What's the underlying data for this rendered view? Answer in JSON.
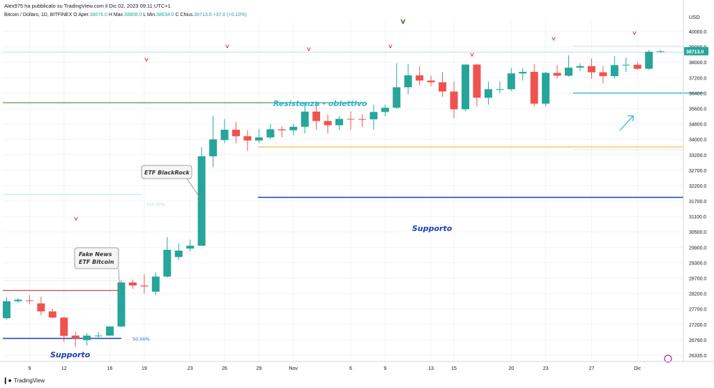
{
  "header": {
    "publisher": "Alex975 ha pubblicato su TradingView.com il Dic 02, 2023 09:11 UTC+1"
  },
  "symbol_bar": {
    "name": "Bitcoin / Dollaro, 1D, BITFINEX",
    "open_label": "O",
    "open_prefix": "Aper.",
    "open": "38676.0",
    "high_label": "H",
    "high_prefix": "Max.",
    "high": "38808.0",
    "low_label": "L",
    "low_prefix": "Min.",
    "low": "38634.0",
    "close_label": "C",
    "close_prefix": "Chius.",
    "close": "38713.0",
    "change": "+37.0 (+0.10%)"
  },
  "currency": "USD",
  "footer": {
    "brand": "TradingView",
    "logo": "tradingview-logo-icon"
  },
  "colors": {
    "up": "#26a69a",
    "down": "#ef5350",
    "grid": "#f0f3fa",
    "accent": "#2962ff"
  },
  "chart_data": {
    "type": "candlestick",
    "ylim": [
      26100,
      40500
    ],
    "y_ticks": [
      "26335.0",
      "26760.0",
      "27200.0",
      "27700.0",
      "28200.0",
      "28700.0",
      "29300.0",
      "29900.0",
      "30500.0",
      "31100.0",
      "31700.0",
      "32200.0",
      "32700.0",
      "33200.0",
      "34000.0",
      "34800.0",
      "35600.0",
      "36400.0",
      "37200.0",
      "38000.0",
      "39000.0",
      "40000.0"
    ],
    "last_price": "38713.0",
    "x_ticks": [
      {
        "i": 2,
        "label": "9"
      },
      {
        "i": 5,
        "label": "12"
      },
      {
        "i": 9,
        "label": "16"
      },
      {
        "i": 12,
        "label": "19"
      },
      {
        "i": 16,
        "label": "23"
      },
      {
        "i": 19,
        "label": "26"
      },
      {
        "i": 22,
        "label": "29"
      },
      {
        "i": 25,
        "label": "Nov"
      },
      {
        "i": 30,
        "label": "6"
      },
      {
        "i": 33,
        "label": "9"
      },
      {
        "i": 37,
        "label": "13"
      },
      {
        "i": 39,
        "label": "15"
      },
      {
        "i": 44,
        "label": "20"
      },
      {
        "i": 47,
        "label": "23"
      },
      {
        "i": 51,
        "label": "27"
      },
      {
        "i": 55,
        "label": "Dic"
      }
    ],
    "candles": [
      {
        "o": 27400,
        "h": 28080,
        "l": 27350,
        "c": 27950
      },
      {
        "o": 27950,
        "h": 28050,
        "l": 27900,
        "c": 28000
      },
      {
        "o": 27980,
        "h": 28150,
        "l": 27850,
        "c": 27960
      },
      {
        "o": 27880,
        "h": 28100,
        "l": 27500,
        "c": 27620
      },
      {
        "o": 27620,
        "h": 27700,
        "l": 27400,
        "c": 27420
      },
      {
        "o": 27420,
        "h": 27450,
        "l": 26700,
        "c": 26870
      },
      {
        "o": 26880,
        "h": 27000,
        "l": 26560,
        "c": 26800
      },
      {
        "o": 26750,
        "h": 26950,
        "l": 26600,
        "c": 26880
      },
      {
        "o": 26870,
        "h": 26980,
        "l": 26800,
        "c": 26880
      },
      {
        "o": 26880,
        "h": 27140,
        "l": 26880,
        "c": 27140
      },
      {
        "o": 27140,
        "h": 28640,
        "l": 27120,
        "c": 28560
      },
      {
        "o": 28560,
        "h": 28650,
        "l": 28350,
        "c": 28460
      },
      {
        "o": 28460,
        "h": 28850,
        "l": 28200,
        "c": 28430
      },
      {
        "o": 28260,
        "h": 28930,
        "l": 28150,
        "c": 28760
      },
      {
        "o": 28760,
        "h": 30300,
        "l": 28720,
        "c": 29800
      },
      {
        "o": 29520,
        "h": 30050,
        "l": 29400,
        "c": 29770
      },
      {
        "o": 29850,
        "h": 30200,
        "l": 29750,
        "c": 29960
      },
      {
        "o": 29960,
        "h": 33600,
        "l": 29950,
        "c": 33150
      },
      {
        "o": 33150,
        "h": 35200,
        "l": 32800,
        "c": 34000
      },
      {
        "o": 33960,
        "h": 35050,
        "l": 33800,
        "c": 34500
      },
      {
        "o": 34500,
        "h": 34900,
        "l": 33800,
        "c": 34160
      },
      {
        "o": 34160,
        "h": 34470,
        "l": 33400,
        "c": 33940
      },
      {
        "o": 33940,
        "h": 34530,
        "l": 33800,
        "c": 34100
      },
      {
        "o": 34100,
        "h": 34800,
        "l": 34000,
        "c": 34520
      },
      {
        "o": 34520,
        "h": 34700,
        "l": 34100,
        "c": 34470
      },
      {
        "o": 34470,
        "h": 34800,
        "l": 34200,
        "c": 34650
      },
      {
        "o": 34650,
        "h": 35900,
        "l": 34300,
        "c": 35440
      },
      {
        "o": 35440,
        "h": 35980,
        "l": 34500,
        "c": 34950
      },
      {
        "o": 34950,
        "h": 35300,
        "l": 34300,
        "c": 34730
      },
      {
        "o": 34730,
        "h": 35200,
        "l": 34500,
        "c": 35060
      },
      {
        "o": 35060,
        "h": 35450,
        "l": 34500,
        "c": 35050
      },
      {
        "o": 35050,
        "h": 35300,
        "l": 34650,
        "c": 35040
      },
      {
        "o": 35040,
        "h": 35800,
        "l": 34500,
        "c": 35420
      },
      {
        "o": 35420,
        "h": 35800,
        "l": 35200,
        "c": 35640
      },
      {
        "o": 35640,
        "h": 37950,
        "l": 35580,
        "c": 36700
      },
      {
        "o": 36700,
        "h": 37900,
        "l": 36350,
        "c": 37320
      },
      {
        "o": 37320,
        "h": 37800,
        "l": 36800,
        "c": 37050
      },
      {
        "o": 37050,
        "h": 37300,
        "l": 36750,
        "c": 36960
      },
      {
        "o": 36960,
        "h": 37500,
        "l": 36200,
        "c": 36480
      },
      {
        "o": 36480,
        "h": 37000,
        "l": 35100,
        "c": 35560
      },
      {
        "o": 35560,
        "h": 37890,
        "l": 35450,
        "c": 37880
      },
      {
        "o": 37880,
        "h": 37920,
        "l": 35700,
        "c": 36160
      },
      {
        "o": 36160,
        "h": 37000,
        "l": 35800,
        "c": 36600
      },
      {
        "o": 36600,
        "h": 37000,
        "l": 36400,
        "c": 36600
      },
      {
        "o": 36600,
        "h": 37700,
        "l": 36500,
        "c": 37420
      },
      {
        "o": 37420,
        "h": 37700,
        "l": 37050,
        "c": 37500
      },
      {
        "o": 37500,
        "h": 37900,
        "l": 35700,
        "c": 35850
      },
      {
        "o": 35850,
        "h": 37500,
        "l": 35700,
        "c": 37450
      },
      {
        "o": 37450,
        "h": 37850,
        "l": 37150,
        "c": 37300
      },
      {
        "o": 37300,
        "h": 38450,
        "l": 37250,
        "c": 37720
      },
      {
        "o": 37720,
        "h": 37950,
        "l": 37550,
        "c": 37800
      },
      {
        "o": 37800,
        "h": 38250,
        "l": 37150,
        "c": 37480
      },
      {
        "o": 37480,
        "h": 37800,
        "l": 36900,
        "c": 37280
      },
      {
        "o": 37280,
        "h": 38400,
        "l": 37150,
        "c": 37850
      },
      {
        "o": 37850,
        "h": 38300,
        "l": 37500,
        "c": 37870
      },
      {
        "o": 37870,
        "h": 38000,
        "l": 37600,
        "c": 37660
      },
      {
        "o": 37660,
        "h": 38800,
        "l": 37600,
        "c": 38680
      },
      {
        "o": 38676,
        "h": 38808,
        "l": 38634,
        "c": 38713
      }
    ],
    "annotations": {
      "resistance": "Resistenza - obiettivo",
      "support_left": "Supporto",
      "support_right": "Supporto",
      "etf_blackrock": "ETF BlackRock",
      "fake_news": "Fake News",
      "fake_news_2": "ETF Bitcoin",
      "fib_50": "50.00%",
      "fib_100": "100.00%",
      "v_mark": "V"
    }
  }
}
